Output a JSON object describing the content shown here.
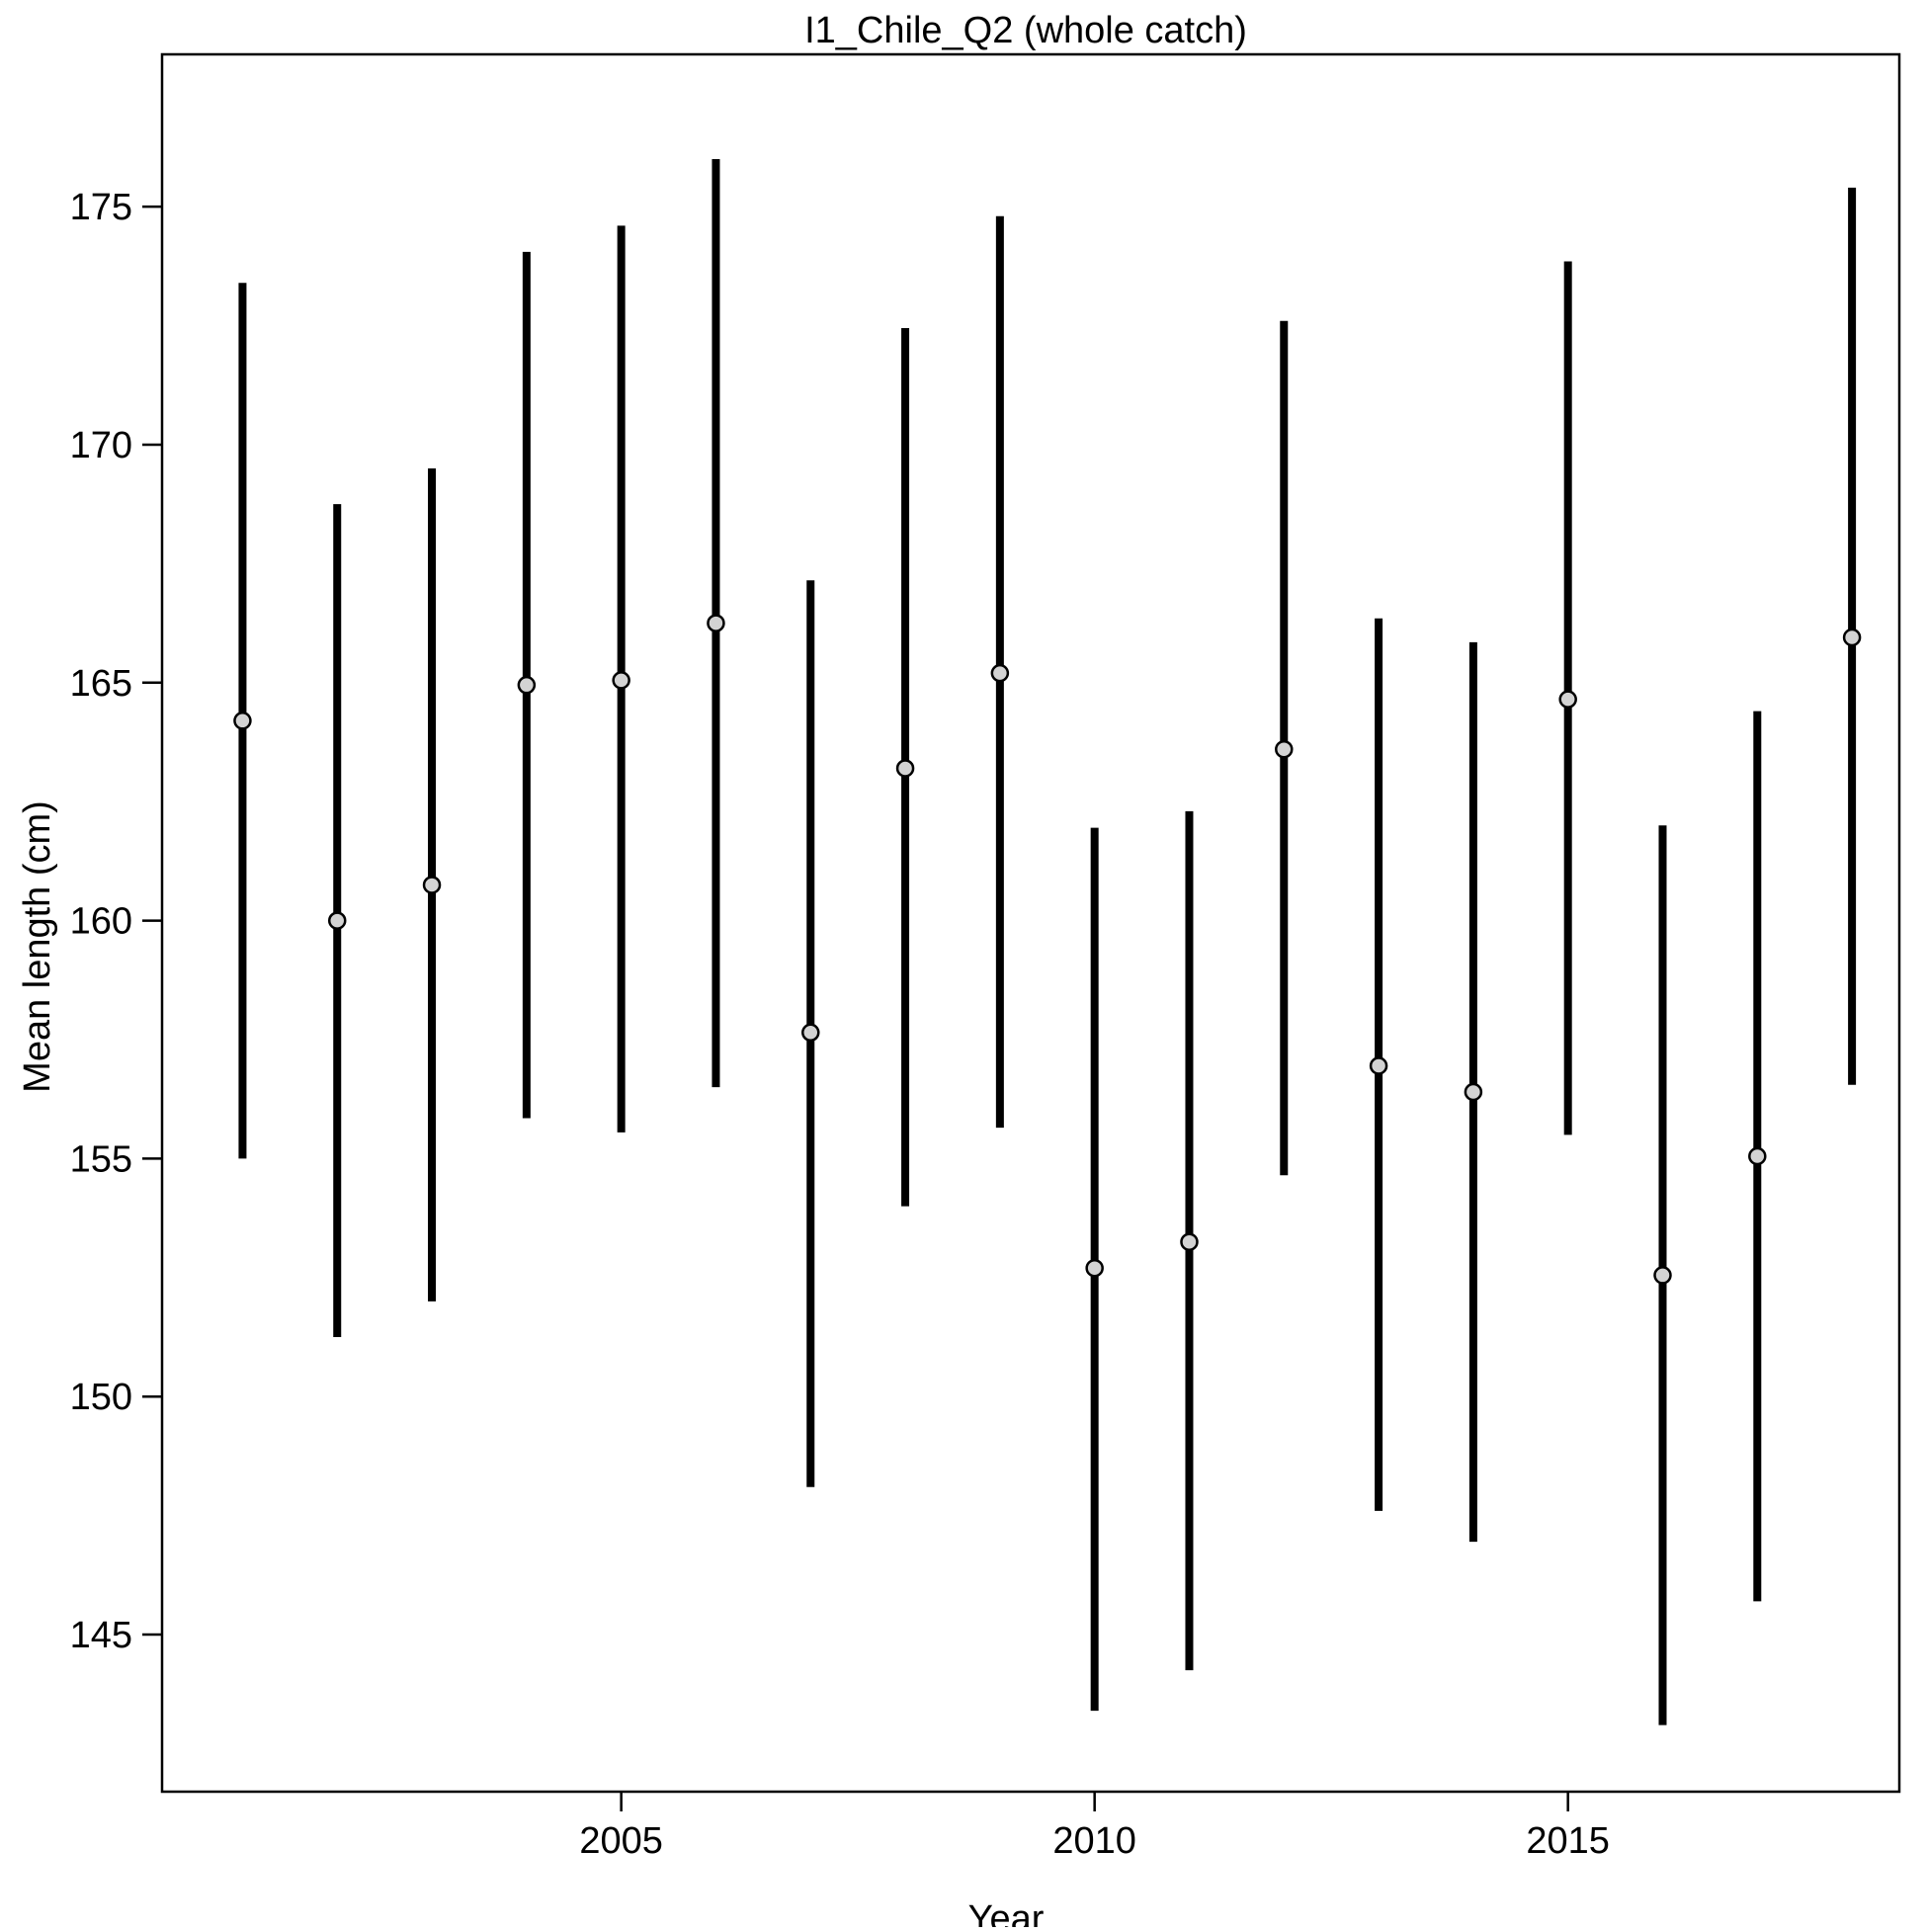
{
  "chart_data": {
    "type": "scatter",
    "title": "I1_Chile_Q2 (whole catch)",
    "xlabel": "Year",
    "ylabel": "Mean length (cm)",
    "xlim": [
      2000.15,
      2018.5
    ],
    "ylim": [
      141.7,
      178.2
    ],
    "x_ticks": [
      2005,
      2010,
      2015
    ],
    "y_ticks": [
      145,
      150,
      155,
      160,
      165,
      170,
      175
    ],
    "grid": false,
    "legend": "none",
    "colors": {
      "bar": "#000000",
      "point_fill": "#d3d3d3",
      "point_edge": "#000000",
      "frame": "#000000"
    },
    "series": [
      {
        "x": [
          2001,
          2002,
          2003,
          2004,
          2005,
          2006,
          2007,
          2008,
          2009,
          2010,
          2011,
          2012,
          2013,
          2014,
          2015,
          2016,
          2017,
          2018
        ],
        "y": [
          164.2,
          160.0,
          160.75,
          164.95,
          165.05,
          166.25,
          157.65,
          163.2,
          165.2,
          152.7,
          153.25,
          163.6,
          156.95,
          156.4,
          164.65,
          152.55,
          155.05,
          165.95
        ],
        "lower": [
          155.0,
          151.25,
          152.0,
          155.85,
          155.55,
          156.5,
          148.1,
          154.0,
          155.65,
          143.4,
          144.25,
          154.65,
          147.6,
          146.95,
          155.5,
          143.1,
          145.7,
          156.55
        ],
        "upper": [
          173.4,
          168.75,
          169.5,
          174.05,
          174.6,
          176.0,
          167.15,
          172.45,
          174.8,
          161.95,
          162.3,
          172.6,
          166.35,
          165.85,
          173.85,
          162.0,
          164.4,
          175.4
        ]
      }
    ]
  }
}
